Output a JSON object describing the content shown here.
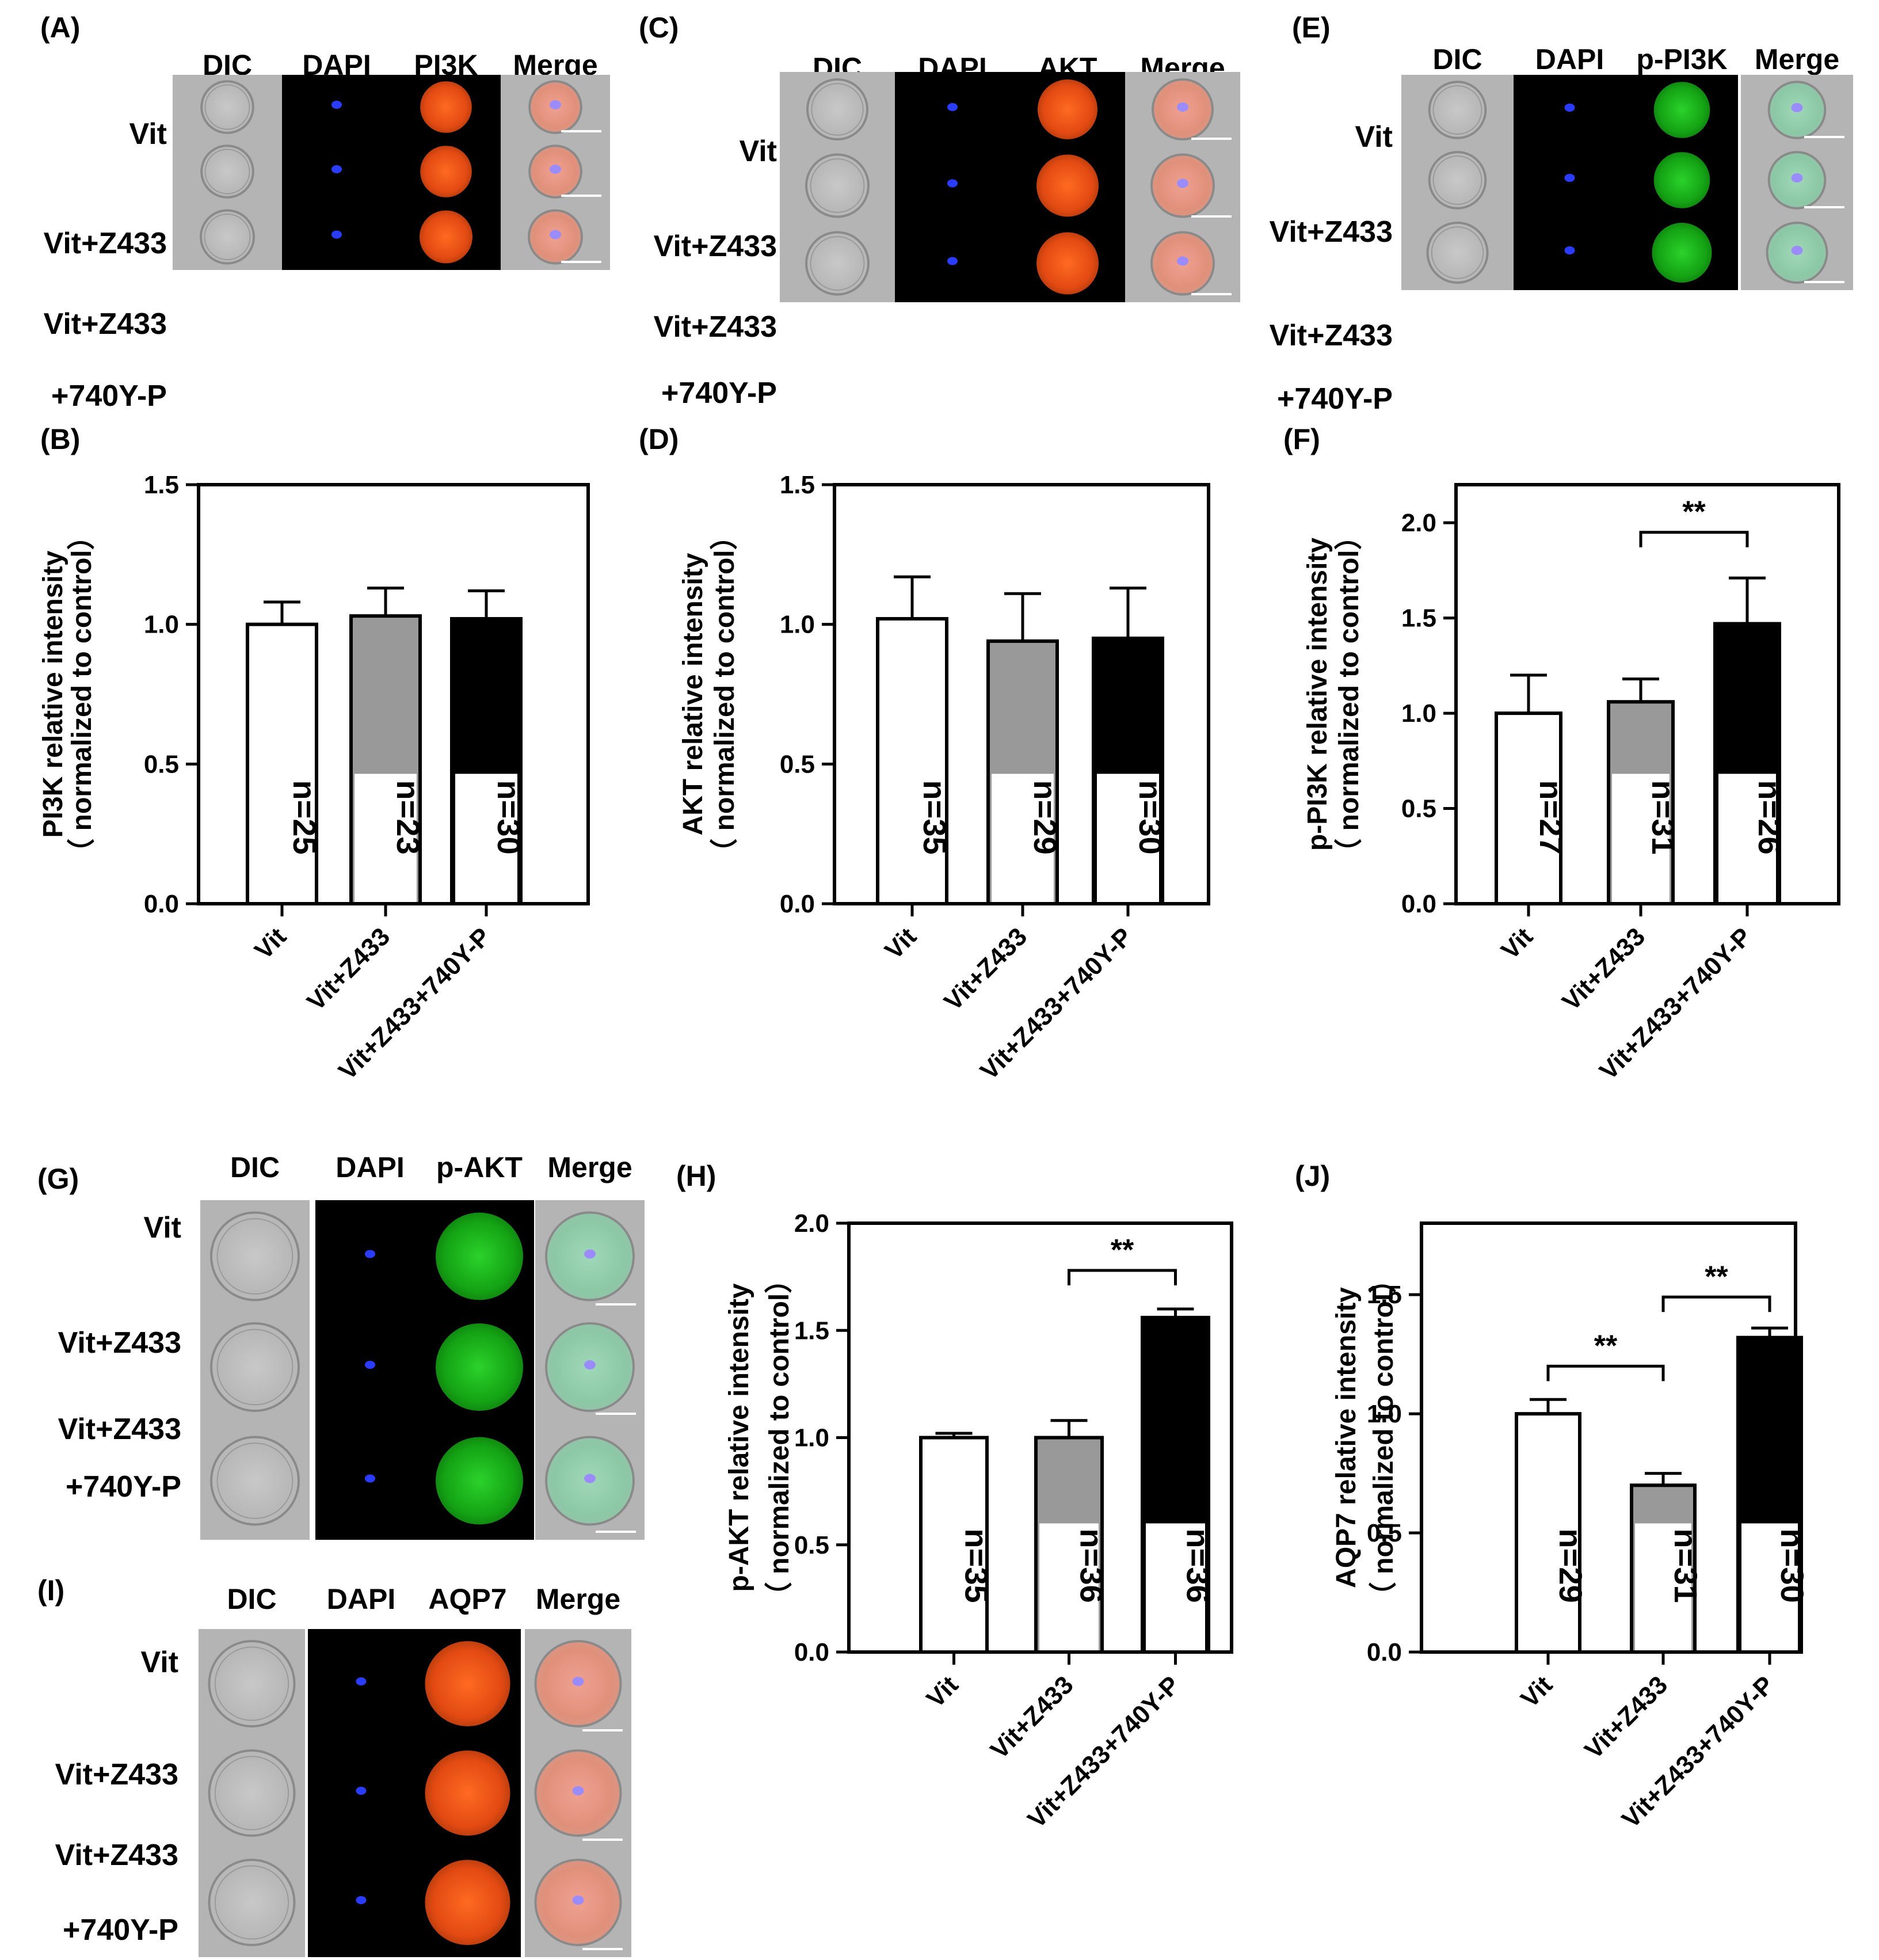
{
  "colors": {
    "white_bar": "#ffffff",
    "gray_bar": "#999999",
    "black_bar": "#000000",
    "dic_bg": "#b4b4b4",
    "dark_bg": "#000000",
    "dapi": "#2a3dff",
    "red_signal": "#e8501a",
    "green_signal": "#1fb81f",
    "scale_bar": "#ffffff"
  },
  "image_panels": [
    {
      "id": "A",
      "label": "(A)",
      "columns": [
        "DIC",
        "DAPI",
        "PI3K",
        "Merge"
      ],
      "rows": [
        "Vit",
        "Vit+Z433",
        [
          "Vit+Z433",
          "+740Y-P"
        ]
      ],
      "signal": "red"
    },
    {
      "id": "C",
      "label": "(C)",
      "columns": [
        "DIC",
        "DAPI",
        "AKT",
        "Merge"
      ],
      "rows": [
        "Vit",
        "Vit+Z433",
        [
          "Vit+Z433",
          "+740Y-P"
        ]
      ],
      "signal": "red"
    },
    {
      "id": "E",
      "label": "(E)",
      "columns": [
        "DIC",
        "DAPI",
        "p-PI3K",
        "Merge"
      ],
      "rows": [
        "Vit",
        "Vit+Z433",
        [
          "Vit+Z433",
          "+740Y-P"
        ]
      ],
      "signal": "green"
    },
    {
      "id": "G",
      "label": "(G)",
      "columns": [
        "DIC",
        "DAPI",
        "p-AKT",
        "Merge"
      ],
      "rows": [
        "Vit",
        "Vit+Z433",
        [
          "Vit+Z433",
          "+740Y-P"
        ]
      ],
      "signal": "green"
    },
    {
      "id": "I",
      "label": "(I)",
      "columns": [
        "DIC",
        "DAPI",
        "AQP7",
        "Merge"
      ],
      "rows": [
        "Vit",
        "Vit+Z433",
        [
          "Vit+Z433",
          "+740Y-P"
        ]
      ],
      "signal": "red"
    }
  ],
  "chart_data": [
    {
      "panel": "(B)",
      "type": "bar",
      "categories": [
        "Vit",
        "Vit+Z433",
        "Vit+Z433+740Y-P"
      ],
      "values": [
        1.0,
        1.03,
        1.02
      ],
      "errors": [
        0.08,
        0.1,
        0.1
      ],
      "n_labels": [
        "n=25",
        "n=23",
        "n=30"
      ],
      "ylabel": "PI3K relative intensity",
      "ylabel2": "（ normalized to control）",
      "ylim": [
        0,
        1.5
      ],
      "yticks": [
        0.0,
        0.5,
        1.0,
        1.5
      ],
      "ytick_labels": [
        "0.0",
        "0.5",
        "1.0",
        "1.5"
      ],
      "significance": []
    },
    {
      "panel": "(D)",
      "type": "bar",
      "categories": [
        "Vit",
        "Vit+Z433",
        "Vit+Z433+740Y-P"
      ],
      "values": [
        1.02,
        0.94,
        0.95
      ],
      "errors": [
        0.15,
        0.17,
        0.18
      ],
      "n_labels": [
        "n=35",
        "n=29",
        "n=30"
      ],
      "ylabel": "AKT relative intensity",
      "ylabel2": "（ normalized to control）",
      "ylim": [
        0,
        1.5
      ],
      "yticks": [
        0.0,
        0.5,
        1.0,
        1.5
      ],
      "ytick_labels": [
        "0.0",
        "0.5",
        "1.0",
        "1.5"
      ],
      "significance": []
    },
    {
      "panel": "(F)",
      "type": "bar",
      "categories": [
        "Vit",
        "Vit+Z433",
        "Vit+Z433+740Y-P"
      ],
      "values": [
        1.0,
        1.06,
        1.47
      ],
      "errors": [
        0.2,
        0.12,
        0.24
      ],
      "n_labels": [
        "n=27",
        "n=31",
        "n=26"
      ],
      "ylabel": "p-PI3K relative intensity",
      "ylabel2": "（ normalized to control）",
      "ylim": [
        0,
        2.2
      ],
      "yticks": [
        0.0,
        0.5,
        1.0,
        1.5,
        2.0
      ],
      "ytick_labels": [
        "0.0",
        "0.5",
        "1.0",
        "1.5",
        "2.0"
      ],
      "significance": [
        {
          "from": 1,
          "to": 2,
          "label": "**",
          "at": 1.95
        }
      ]
    },
    {
      "panel": "(H)",
      "type": "bar",
      "categories": [
        "Vit",
        "Vit+Z433",
        "Vit+Z433+740Y-P"
      ],
      "values": [
        1.0,
        1.0,
        1.56
      ],
      "errors": [
        0.02,
        0.08,
        0.04
      ],
      "n_labels": [
        "n=35",
        "n=36",
        "n=36"
      ],
      "ylabel": "p-AKT relative intensity",
      "ylabel2": "（ normalized to control）",
      "ylim": [
        0,
        2.0
      ],
      "yticks": [
        0.0,
        0.5,
        1.0,
        1.5,
        2.0
      ],
      "ytick_labels": [
        "0.0",
        "0.5",
        "1.0",
        "1.5",
        "2.0"
      ],
      "significance": [
        {
          "from": 1,
          "to": 2,
          "label": "**",
          "at": 1.78
        }
      ]
    },
    {
      "panel": "(J)",
      "type": "bar",
      "categories": [
        "Vit",
        "Vit+Z433",
        "Vit+Z433+740Y-P"
      ],
      "values": [
        1.0,
        0.7,
        1.32
      ],
      "errors": [
        0.06,
        0.05,
        0.04
      ],
      "n_labels": [
        "n=29",
        "n=31",
        "n=30"
      ],
      "ylabel": "AQP7 relative intensity",
      "ylabel2": "（ normalized to control）",
      "ylim": [
        0,
        1.8
      ],
      "yticks": [
        0.0,
        0.5,
        1.0,
        1.5
      ],
      "ytick_labels": [
        "0.0",
        "0.5",
        "1.0",
        "1.5"
      ],
      "significance": [
        {
          "from": 0,
          "to": 1,
          "label": "**",
          "at": 1.2
        },
        {
          "from": 1,
          "to": 2,
          "label": "**",
          "at": 1.49
        }
      ]
    }
  ]
}
